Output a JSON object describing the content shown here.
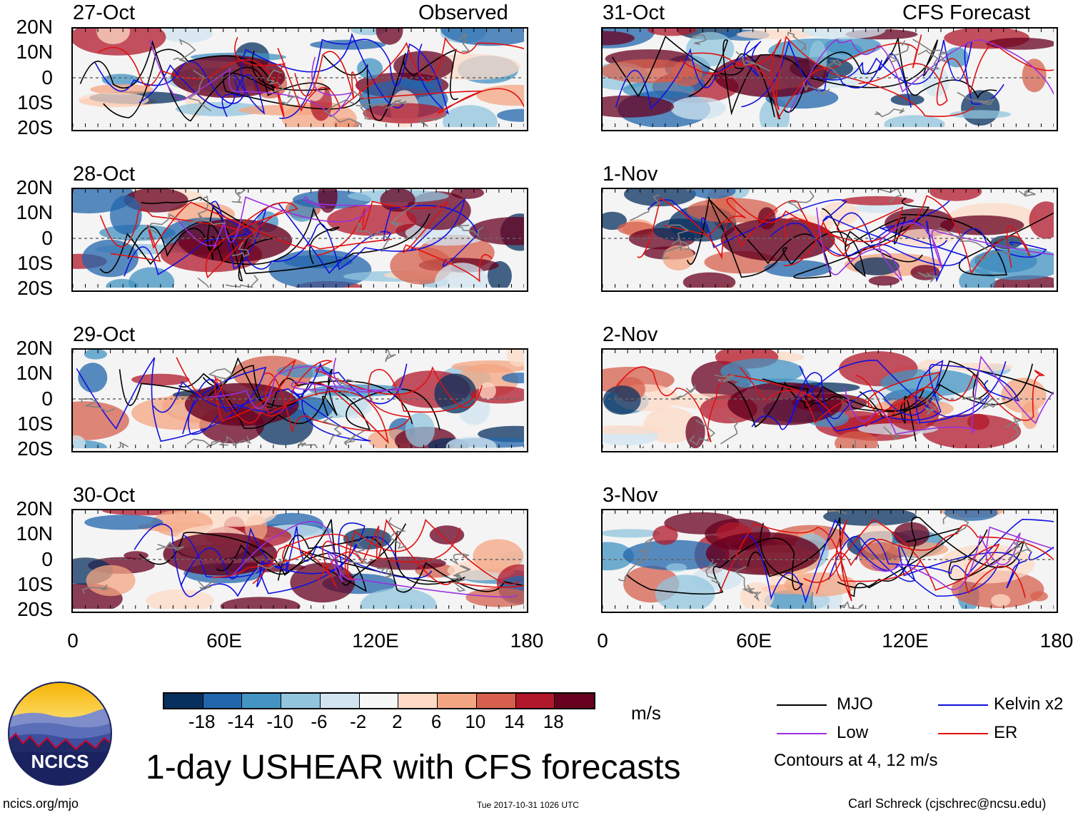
{
  "headers": {
    "observed": "Observed",
    "forecast": "CFS Forecast"
  },
  "panels_left": [
    {
      "date": "27-Oct"
    },
    {
      "date": "28-Oct"
    },
    {
      "date": "29-Oct"
    },
    {
      "date": "30-Oct"
    }
  ],
  "panels_right": [
    {
      "date": "31-Oct"
    },
    {
      "date": "1-Nov"
    },
    {
      "date": "2-Nov"
    },
    {
      "date": "3-Nov"
    }
  ],
  "lat_labels": [
    "20N",
    "10N",
    "0",
    "10S",
    "20S"
  ],
  "lon_labels": [
    "0",
    "60E",
    "120E",
    "180"
  ],
  "colorbar": {
    "labels": [
      "-18",
      "-14",
      "-10",
      "-6",
      "-2",
      "2",
      "6",
      "10",
      "14",
      "18"
    ],
    "colors": [
      "#08305f",
      "#2166ac",
      "#4393c3",
      "#92c5de",
      "#d1e5f0",
      "#f7f7f7",
      "#fddbc7",
      "#f4a582",
      "#d6604d",
      "#b2182b",
      "#67001f"
    ],
    "units": "m/s"
  },
  "legend": {
    "items": [
      {
        "label": "MJO",
        "color": "#000000"
      },
      {
        "label": "Kelvin x2",
        "color": "#1010e0"
      },
      {
        "label": "Low",
        "color": "#9b30e0"
      },
      {
        "label": "ER",
        "color": "#e01010"
      }
    ],
    "note": "Contours at 4, 12 m/s"
  },
  "logo": {
    "text": "NCICS"
  },
  "title": "1-day USHEAR with CFS forecasts",
  "footer": {
    "left": "ncics.org/mjo",
    "center": "Tue 2017-10-31 1026 UTC",
    "right": "Carl Schreck (cjschrec@ncsu.edu)"
  }
}
